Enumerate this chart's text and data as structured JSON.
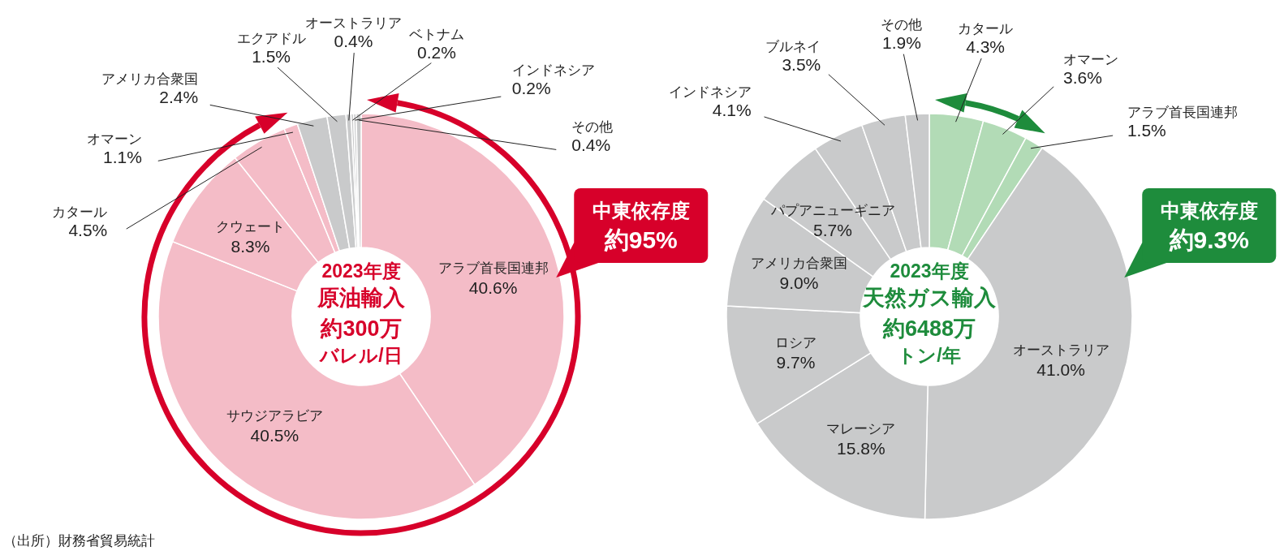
{
  "chart_data": [
    {
      "type": "donut",
      "title": "2023年度",
      "subtitle": "原油輸入",
      "categories": [
        "アラブ首長国連邦",
        "サウジアラビア",
        "クウェート",
        "カタール",
        "オマーン",
        "アメリカ合衆国",
        "エクアドル",
        "オーストラリア",
        "ベトナム",
        "インドネシア",
        "その他"
      ],
      "values": [
        40.6,
        40.5,
        8.3,
        4.5,
        1.1,
        2.4,
        1.5,
        0.4,
        0.2,
        0.2,
        0.4
      ],
      "colors": [
        "#f4bcc7",
        "#f4bcc7",
        "#f4bcc7",
        "#f4bcc7",
        "#f4bcc7",
        "#c9cacb",
        "#c9cacb",
        "#c9cacb",
        "#c9cacb",
        "#c9cacb",
        "#c9cacb"
      ],
      "value_labels": [
        "40.6%",
        "40.5%",
        "8.3%",
        "4.5%",
        "1.1%",
        "2.4%",
        "1.5%",
        "0.4%",
        "0.2%",
        "0.2%",
        "0.4%"
      ],
      "annotations": [
        "約300万",
        "バレル/日",
        "中東依存度",
        "約95%",
        "（出所）財務省貿易統計"
      ]
    },
    {
      "type": "donut",
      "title": "2023年度",
      "subtitle": "天然ガス輸入",
      "categories": [
        "カタール",
        "オマーン",
        "アラブ首長国連邦",
        "オーストラリア",
        "マレーシア",
        "ロシア",
        "アメリカ合衆国",
        "パプアニューギニア",
        "インドネシア",
        "ブルネイ",
        "その他"
      ],
      "values": [
        4.3,
        3.6,
        1.5,
        41.0,
        15.8,
        9.7,
        9.0,
        5.7,
        4.1,
        3.5,
        1.9
      ],
      "colors": [
        "#b2dbb6",
        "#b2dbb6",
        "#b2dbb6",
        "#c9cacb",
        "#c9cacb",
        "#c9cacb",
        "#c9cacb",
        "#c9cacb",
        "#c9cacb",
        "#c9cacb",
        "#c9cacb"
      ],
      "value_labels": [
        "4.3%",
        "3.6%",
        "1.5%",
        "41.0%",
        "15.8%",
        "9.7%",
        "9.0%",
        "5.7%",
        "4.1%",
        "3.5%",
        "1.9%"
      ],
      "annotations": [
        "約6488万",
        "トン/年",
        "中東依存度",
        "約9.3%"
      ]
    }
  ]
}
